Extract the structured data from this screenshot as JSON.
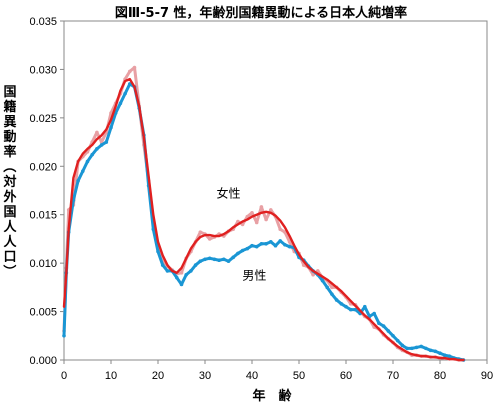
{
  "chart_data": {
    "type": "line",
    "title": "図Ⅲ-5-7 性，年齢別国籍異動による日本人純増率",
    "xlabel": "年　齢",
    "ylabel": "国籍異動率（対外国人人口）",
    "xlim": [
      0,
      90
    ],
    "ylim": [
      0,
      0.035
    ],
    "x_ticks": [
      0,
      10,
      20,
      30,
      40,
      50,
      60,
      70,
      80,
      90
    ],
    "y_ticks": [
      "0.000",
      "0.005",
      "0.010",
      "0.015",
      "0.020",
      "0.025",
      "0.030",
      "0.035"
    ],
    "grid": false,
    "legend": "none",
    "annotations": [
      {
        "text": "女性",
        "x": 35,
        "y": 0.0168
      },
      {
        "text": "男性",
        "x": 40.5,
        "y": 0.0083
      }
    ],
    "series": [
      {
        "name": "女性",
        "role": "smoothed",
        "color": "#e02020",
        "x": [
          0,
          0.5,
          1,
          2,
          3,
          4,
          5,
          6,
          7,
          8,
          9,
          10,
          11,
          12,
          13,
          14,
          15,
          16,
          17,
          18,
          19,
          20,
          21,
          22,
          23,
          24,
          25,
          26,
          27,
          28,
          29,
          30,
          31,
          32,
          33,
          34,
          35,
          36,
          37,
          38,
          39,
          40,
          41,
          42,
          43,
          44,
          45,
          46,
          47,
          48,
          49,
          50,
          51,
          52,
          53,
          54,
          55,
          56,
          57,
          58,
          59,
          60,
          61,
          62,
          63,
          64,
          65,
          66,
          67,
          68,
          69,
          70,
          71,
          72,
          73,
          74,
          75,
          76,
          77,
          78,
          79,
          80,
          81,
          82,
          83,
          84,
          85
        ],
        "y": [
          0.0055,
          0.009,
          0.0135,
          0.0188,
          0.0205,
          0.0213,
          0.0218,
          0.0222,
          0.0228,
          0.0232,
          0.0238,
          0.0248,
          0.0262,
          0.0278,
          0.0288,
          0.029,
          0.0282,
          0.0262,
          0.023,
          0.019,
          0.015,
          0.0122,
          0.0108,
          0.0098,
          0.0092,
          0.009,
          0.0095,
          0.0105,
          0.0115,
          0.0122,
          0.0127,
          0.0129,
          0.0129,
          0.0128,
          0.0128,
          0.013,
          0.0133,
          0.0137,
          0.014,
          0.0143,
          0.0145,
          0.0148,
          0.015,
          0.0152,
          0.0153,
          0.0152,
          0.0149,
          0.0144,
          0.0137,
          0.0128,
          0.0118,
          0.0109,
          0.0102,
          0.0096,
          0.0092,
          0.0089,
          0.0086,
          0.0083,
          0.0079,
          0.0075,
          0.0071,
          0.0066,
          0.0061,
          0.0056,
          0.0051,
          0.0046,
          0.0042,
          0.0037,
          0.0032,
          0.0027,
          0.0022,
          0.0018,
          0.0014,
          0.0011,
          0.0008,
          0.0006,
          0.0005,
          0.0004,
          0.0004,
          0.0003,
          0.0003,
          0.0002,
          0.0002,
          0.0001,
          0.0001,
          0.0,
          0.0
        ]
      },
      {
        "name": "男性",
        "role": "observed",
        "color": "#1a96d4",
        "x": [
          0,
          0.5,
          1,
          2,
          3,
          4,
          5,
          6,
          7,
          8,
          9,
          10,
          11,
          12,
          13,
          14,
          15,
          16,
          17,
          18,
          19,
          20,
          21,
          22,
          23,
          24,
          25,
          26,
          27,
          28,
          29,
          30,
          31,
          32,
          33,
          34,
          35,
          36,
          37,
          38,
          39,
          40,
          41,
          42,
          43,
          44,
          45,
          46,
          47,
          48,
          49,
          50,
          51,
          52,
          53,
          54,
          55,
          56,
          57,
          58,
          59,
          60,
          61,
          62,
          63,
          64,
          65,
          66,
          67,
          68,
          69,
          70,
          71,
          72,
          73,
          74,
          75,
          76,
          77,
          78,
          79,
          80,
          81,
          82,
          83,
          84,
          85
        ],
        "y": [
          0.0025,
          0.009,
          0.0132,
          0.0165,
          0.0185,
          0.0195,
          0.0205,
          0.0212,
          0.0218,
          0.0222,
          0.0225,
          0.024,
          0.0255,
          0.0265,
          0.0275,
          0.0285,
          0.0282,
          0.026,
          0.0232,
          0.018,
          0.0135,
          0.0112,
          0.0098,
          0.0092,
          0.0092,
          0.0085,
          0.0078,
          0.0088,
          0.0092,
          0.0098,
          0.0102,
          0.0104,
          0.0105,
          0.0104,
          0.0103,
          0.0104,
          0.0102,
          0.0106,
          0.011,
          0.0113,
          0.0115,
          0.0118,
          0.0117,
          0.012,
          0.012,
          0.0122,
          0.0118,
          0.0123,
          0.0119,
          0.0117,
          0.0116,
          0.0106,
          0.0103,
          0.0097,
          0.0092,
          0.0088,
          0.0082,
          0.0075,
          0.0068,
          0.0062,
          0.0058,
          0.0055,
          0.0052,
          0.0052,
          0.0048,
          0.0055,
          0.0045,
          0.0048,
          0.0038,
          0.0035,
          0.003,
          0.0025,
          0.002,
          0.0015,
          0.0012,
          0.0012,
          0.0013,
          0.0014,
          0.0012,
          0.001,
          0.0009,
          0.0007,
          0.0005,
          0.0004,
          0.0002,
          0.0001,
          0.0
        ]
      },
      {
        "name": "女性",
        "role": "observed",
        "color": "#e8a0a4",
        "x": [
          0,
          0.5,
          1,
          2,
          3,
          4,
          5,
          6,
          7,
          8,
          9,
          10,
          11,
          12,
          13,
          14,
          15,
          16,
          17,
          18,
          19,
          20,
          21,
          22,
          23,
          24,
          25,
          26,
          27,
          28,
          29,
          30,
          31,
          32,
          33,
          34,
          35,
          36,
          37,
          38,
          39,
          40,
          41,
          42,
          43,
          44,
          45,
          46,
          47,
          48,
          49,
          50,
          51,
          52,
          53,
          54,
          55,
          56,
          57,
          58,
          59,
          60,
          61,
          62,
          63,
          64,
          65,
          66,
          67,
          68,
          69,
          70,
          71,
          72,
          73,
          74,
          75,
          76,
          77,
          78,
          79,
          80,
          81,
          82,
          83,
          84,
          85
        ],
        "y": [
          0.003,
          0.0095,
          0.0155,
          0.016,
          0.0205,
          0.021,
          0.0215,
          0.0225,
          0.0235,
          0.0225,
          0.0235,
          0.0255,
          0.0265,
          0.0275,
          0.029,
          0.0298,
          0.0302,
          0.0262,
          0.0222,
          0.0185,
          0.0145,
          0.0118,
          0.0103,
          0.0097,
          0.0093,
          0.0089,
          0.009,
          0.0105,
          0.0112,
          0.0122,
          0.0132,
          0.013,
          0.0125,
          0.0127,
          0.013,
          0.0128,
          0.0133,
          0.0135,
          0.0143,
          0.014,
          0.0148,
          0.0152,
          0.0142,
          0.0158,
          0.0145,
          0.0155,
          0.0148,
          0.0135,
          0.0132,
          0.0122,
          0.0112,
          0.011,
          0.0098,
          0.0096,
          0.0088,
          0.0092,
          0.0085,
          0.0082,
          0.0075,
          0.0075,
          0.007,
          0.0065,
          0.0058,
          0.0057,
          0.005,
          0.0045,
          0.0042,
          0.0034,
          0.0032,
          0.0026,
          0.0022,
          0.0018,
          0.0013,
          0.001,
          0.0008,
          0.0005,
          0.0005,
          0.0004,
          0.0004,
          0.0003,
          0.0003,
          0.0002,
          0.0002,
          0.0001,
          0.0001,
          0.0,
          0.0
        ]
      }
    ]
  }
}
